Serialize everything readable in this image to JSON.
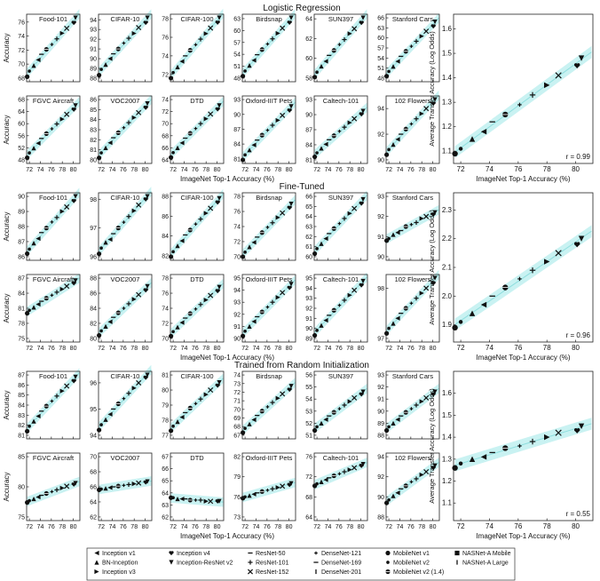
{
  "colors": {
    "band": "#bff0f0",
    "line": "#8fdede",
    "marker": "#111111"
  },
  "x_ticks": [
    "72",
    "74",
    "76",
    "78",
    "80"
  ],
  "sections": [
    {
      "title": "Logistic Regression",
      "small_ylabel": "Accuracy",
      "xlabel": "ImageNet Top-1 Accuracy (%)",
      "panels": [
        {
          "name": "Food-101",
          "yticks": [
            "68",
            "70",
            "72",
            "74",
            "76"
          ],
          "y": [
            68.2,
            69.0,
            69.8,
            70.6,
            71.4,
            72.1,
            72.8,
            73.6,
            74.4,
            75.1,
            75.9,
            76.6
          ]
        },
        {
          "name": "CIFAR-10",
          "yticks": [
            "88",
            "89",
            "90",
            "91",
            "92",
            "93",
            "94"
          ],
          "y": [
            88.3,
            88.9,
            89.4,
            90.0,
            90.5,
            91.0,
            91.6,
            92.1,
            92.6,
            93.2,
            93.7,
            94.2
          ]
        },
        {
          "name": "CIFAR-100",
          "yticks": [
            "72",
            "74",
            "76",
            "78"
          ],
          "y": [
            71.6,
            72.2,
            72.8,
            73.4,
            74.0,
            74.6,
            75.2,
            75.8,
            76.4,
            77.0,
            77.6,
            78.1
          ]
        },
        {
          "name": "Birdsnap",
          "yticks": [
            "48",
            "51",
            "54",
            "57",
            "60",
            "63"
          ],
          "y": [
            48.5,
            49.8,
            51.2,
            52.5,
            53.9,
            55.2,
            56.6,
            57.9,
            59.3,
            60.6,
            62.0,
            63.2
          ]
        },
        {
          "name": "SUN397",
          "yticks": [
            "58",
            "60",
            "62",
            "64"
          ],
          "y": [
            58.1,
            58.6,
            59.2,
            59.7,
            60.3,
            60.8,
            61.4,
            61.9,
            62.5,
            63.0,
            63.6,
            64.1
          ]
        },
        {
          "name": "Stanford Cars",
          "yticks": [
            "48",
            "51",
            "54",
            "57",
            "60",
            "63",
            "66"
          ],
          "y": [
            48.6,
            50.0,
            51.5,
            53.0,
            54.5,
            56.0,
            57.5,
            59.0,
            60.5,
            62.0,
            63.5,
            64.8
          ]
        },
        {
          "name": "FGVC Aircraft",
          "yticks": [
            "48",
            "52",
            "56",
            "60",
            "64",
            "68"
          ],
          "y": [
            48.7,
            50.3,
            51.9,
            53.5,
            55.1,
            56.7,
            58.3,
            59.9,
            61.5,
            63.1,
            64.7,
            66.0
          ]
        },
        {
          "name": "VOC2007",
          "yticks": [
            "80",
            "81",
            "82",
            "83",
            "84",
            "85",
            "86"
          ],
          "y": [
            80.2,
            80.7,
            81.2,
            81.7,
            82.2,
            82.7,
            83.2,
            83.7,
            84.2,
            84.7,
            85.2,
            85.6
          ]
        },
        {
          "name": "DTD",
          "yticks": [
            "64",
            "66",
            "68",
            "70",
            "72",
            "74"
          ],
          "y": [
            64.4,
            65.2,
            66.0,
            66.8,
            67.6,
            68.4,
            69.2,
            70.0,
            70.8,
            71.6,
            72.4,
            73.0
          ]
        },
        {
          "name": "Oxford-IIIT Pets",
          "yticks": [
            "81",
            "84",
            "87",
            "90",
            "93"
          ],
          "y": [
            80.8,
            81.8,
            82.8,
            83.8,
            84.8,
            85.8,
            86.8,
            87.8,
            88.8,
            89.8,
            90.8,
            91.6
          ]
        },
        {
          "name": "Caltech-101",
          "yticks": [
            "81",
            "84",
            "87",
            "90",
            "93"
          ],
          "y": [
            81.6,
            82.4,
            83.3,
            84.1,
            85.0,
            85.8,
            86.7,
            87.5,
            88.4,
            89.2,
            90.1,
            90.7
          ]
        },
        {
          "name": "102 Flowers",
          "yticks": [
            "90",
            "92",
            "94"
          ],
          "y": [
            90.4,
            90.8,
            91.2,
            91.6,
            92.0,
            92.4,
            92.8,
            93.2,
            93.6,
            94.0,
            94.4,
            94.7
          ]
        }
      ],
      "big": {
        "ylabel": "Average Transfer Accuracy (Log Odds)",
        "yticks": [
          "1.1",
          "1.2",
          "1.3",
          "1.4",
          "1.5",
          "1.6"
        ],
        "ymin": 1.05,
        "ymax": 1.66,
        "r_label": "r = 0.99",
        "y": [
          1.09,
          1.11,
          1.15,
          1.18,
          1.22,
          1.25,
          1.29,
          1.33,
          1.37,
          1.41,
          1.45,
          1.48
        ]
      }
    },
    {
      "title": "Fine-Tuned",
      "small_ylabel": "Accuracy",
      "xlabel": "ImageNet Top-1 Accuracy (%)",
      "panels": [
        {
          "name": "Food-101",
          "yticks": [
            "86",
            "87",
            "88",
            "89",
            "90"
          ],
          "y": [
            86.2,
            86.5,
            86.9,
            87.2,
            87.6,
            87.9,
            88.3,
            88.6,
            89.0,
            89.3,
            89.7,
            90.0
          ]
        },
        {
          "name": "CIFAR-10",
          "yticks": [
            "96",
            "97",
            "98"
          ],
          "y": [
            96.1,
            96.3,
            96.5,
            96.6,
            96.8,
            97.0,
            97.2,
            97.4,
            97.6,
            97.8,
            98.0,
            98.1
          ]
        },
        {
          "name": "CIFAR-100",
          "yticks": [
            "82",
            "84",
            "86",
            "88"
          ],
          "y": [
            81.9,
            82.4,
            83.0,
            83.5,
            84.1,
            84.6,
            85.2,
            85.7,
            86.3,
            86.8,
            87.4,
            87.8
          ]
        },
        {
          "name": "Birdsnap",
          "yticks": [
            "70",
            "72",
            "74",
            "76",
            "78"
          ],
          "y": [
            70.0,
            70.6,
            71.3,
            71.9,
            72.6,
            73.2,
            73.9,
            74.5,
            75.2,
            75.8,
            76.5,
            77.0
          ]
        },
        {
          "name": "SUN397",
          "yticks": [
            "60",
            "61",
            "62",
            "63",
            "64",
            "65",
            "66"
          ],
          "y": [
            60.3,
            60.8,
            61.3,
            61.8,
            62.3,
            62.8,
            63.3,
            63.8,
            64.3,
            64.8,
            65.3,
            65.7
          ]
        },
        {
          "name": "Stanford Cars",
          "yticks": [
            "90",
            "91",
            "92",
            "93"
          ],
          "y": [
            90.8,
            90.9,
            91.1,
            91.2,
            91.3,
            91.5,
            91.6,
            91.7,
            91.9,
            92.0,
            92.1,
            92.2
          ]
        },
        {
          "name": "FGVC Aircraft",
          "yticks": [
            "75",
            "78",
            "81",
            "84",
            "87"
          ],
          "y": [
            80.0,
            80.6,
            81.2,
            81.8,
            82.4,
            83.0,
            83.6,
            84.2,
            84.8,
            85.4,
            86.0,
            86.5
          ]
        },
        {
          "name": "VOC2007",
          "yticks": [
            "80",
            "82",
            "84",
            "86",
            "88"
          ],
          "y": [
            80.4,
            81.0,
            81.6,
            82.2,
            82.8,
            83.4,
            84.0,
            84.6,
            85.2,
            85.8,
            86.4,
            86.9
          ]
        },
        {
          "name": "DTD",
          "yticks": [
            "70",
            "72",
            "74",
            "76",
            "78"
          ],
          "y": [
            70.3,
            70.9,
            71.5,
            72.1,
            72.7,
            73.3,
            73.9,
            74.5,
            75.1,
            75.7,
            76.3,
            76.8
          ]
        },
        {
          "name": "Oxford-IIIT Pets",
          "yticks": [
            "90",
            "91",
            "92",
            "93",
            "94",
            "95"
          ],
          "y": [
            90.2,
            90.6,
            91.0,
            91.4,
            91.8,
            92.2,
            92.6,
            93.0,
            93.4,
            93.8,
            94.2,
            94.5
          ]
        },
        {
          "name": "Caltech-101",
          "yticks": [
            "89",
            "90",
            "91",
            "92",
            "93",
            "94",
            "95"
          ],
          "y": [
            89.3,
            89.8,
            90.3,
            90.8,
            91.3,
            91.8,
            92.3,
            92.8,
            93.3,
            93.8,
            94.3,
            94.7
          ]
        },
        {
          "name": "102 Flowers",
          "yticks": [
            "97",
            "98"
          ],
          "y": [
            97.1,
            97.2,
            97.3,
            97.4,
            97.5,
            97.6,
            97.7,
            97.8,
            97.9,
            98.0,
            98.1,
            98.2
          ]
        }
      ],
      "big": {
        "ylabel": "Average Transfer Accuracy (Log Odds)",
        "yticks": [
          "1.9",
          "2.0",
          "2.1",
          "2.2",
          "2.3"
        ],
        "ymin": 1.84,
        "ymax": 2.36,
        "r_label": "r = 0.96",
        "y": [
          1.89,
          1.91,
          1.94,
          1.97,
          2.0,
          2.03,
          2.06,
          2.09,
          2.12,
          2.15,
          2.18,
          2.2
        ]
      }
    },
    {
      "title": "Trained from Random Initialization",
      "small_ylabel": "Accuracy",
      "xlabel": "ImageNet Top-1 Accuracy (%)",
      "panels": [
        {
          "name": "Food-101",
          "yticks": [
            "81",
            "82",
            "83",
            "84",
            "85",
            "86",
            "87"
          ],
          "y": [
            81.4,
            81.9,
            82.4,
            82.9,
            83.4,
            83.9,
            84.4,
            84.9,
            85.4,
            85.9,
            86.4,
            86.8
          ]
        },
        {
          "name": "CIFAR-10",
          "yticks": [
            "94",
            "95",
            "96"
          ],
          "y": [
            94.2,
            94.4,
            94.6,
            94.8,
            95.0,
            95.2,
            95.4,
            95.6,
            95.8,
            96.0,
            96.2,
            96.3
          ]
        },
        {
          "name": "CIFAR-100",
          "yticks": [
            "77",
            "78",
            "79",
            "80",
            "81"
          ],
          "y": [
            77.3,
            77.6,
            77.9,
            78.2,
            78.5,
            78.8,
            79.1,
            79.4,
            79.7,
            80.0,
            80.3,
            80.5
          ]
        },
        {
          "name": "Birdsnap",
          "yticks": [
            "67",
            "68",
            "69",
            "70",
            "71",
            "72",
            "73",
            "74"
          ],
          "y": [
            67.3,
            67.8,
            68.3,
            68.8,
            69.3,
            69.8,
            70.3,
            70.8,
            71.3,
            71.8,
            72.3,
            72.7
          ]
        },
        {
          "name": "SUN397",
          "yticks": [
            "51",
            "52",
            "53",
            "54",
            "55",
            "56"
          ],
          "y": [
            51.4,
            51.7,
            52.0,
            52.3,
            52.6,
            52.9,
            53.2,
            53.5,
            53.8,
            54.1,
            54.4,
            54.6
          ]
        },
        {
          "name": "Stanford Cars",
          "yticks": [
            "88",
            "89",
            "90",
            "91",
            "92",
            "93"
          ],
          "y": [
            88.4,
            88.7,
            89.0,
            89.3,
            89.6,
            89.9,
            90.2,
            90.5,
            90.8,
            91.1,
            91.4,
            91.6
          ]
        },
        {
          "name": "FGVC Aircraft",
          "yticks": [
            "75",
            "80",
            "85"
          ],
          "y": [
            77.4,
            77.7,
            78.0,
            78.3,
            78.6,
            78.9,
            79.2,
            79.5,
            79.8,
            80.1,
            80.4,
            80.6
          ]
        },
        {
          "name": "VOC2007",
          "yticks": [
            "62",
            "64",
            "66",
            "68",
            "70"
          ],
          "y": [
            65.6,
            65.7,
            65.8,
            65.9,
            66.0,
            66.1,
            66.2,
            66.3,
            66.4,
            66.5,
            66.6,
            66.7
          ]
        },
        {
          "name": "DTD",
          "yticks": [
            "62",
            "63",
            "64",
            "65",
            "66",
            "67"
          ],
          "y": [
            63.6,
            63.6,
            63.5,
            63.5,
            63.5,
            63.4,
            63.4,
            63.4,
            63.3,
            63.3,
            63.3,
            63.3
          ]
        },
        {
          "name": "Oxford-IIIT Pets",
          "yticks": [
            "73",
            "76",
            "79",
            "82"
          ],
          "y": [
            75.8,
            76.0,
            76.2,
            76.4,
            76.6,
            76.8,
            77.0,
            77.2,
            77.4,
            77.6,
            77.8,
            78.0
          ]
        },
        {
          "name": "Caltech-101",
          "yticks": [
            "64",
            "68",
            "72",
            "76"
          ],
          "y": [
            70.2,
            70.6,
            71.0,
            71.4,
            71.8,
            72.2,
            72.6,
            73.0,
            73.4,
            73.8,
            74.2,
            74.5
          ]
        },
        {
          "name": "102 Flowers",
          "yticks": [
            "88",
            "90",
            "92",
            "94"
          ],
          "y": [
            89.4,
            89.7,
            90.1,
            90.4,
            90.8,
            91.1,
            91.5,
            91.8,
            92.2,
            92.5,
            92.9,
            93.1
          ]
        }
      ],
      "big": {
        "ylabel": "Average Transfer Accuracy (Log Odds)",
        "yticks": [
          "1.1",
          "1.2",
          "1.3",
          "1.4",
          "1.5",
          "1.6"
        ],
        "ymin": 1.02,
        "ymax": 1.7,
        "r_label": "r = 0.55",
        "y": [
          1.26,
          1.28,
          1.3,
          1.31,
          1.33,
          1.35,
          1.36,
          1.38,
          1.4,
          1.42,
          1.43,
          1.45
        ]
      }
    }
  ],
  "models": [
    {
      "name": "Inception v1",
      "marker": "tri-left"
    },
    {
      "name": "BN-Inception",
      "marker": "tri-up"
    },
    {
      "name": "Inception v3",
      "marker": "tri-right"
    },
    {
      "name": "Inception v4",
      "marker": "heart"
    },
    {
      "name": "Inception-ResNet v2",
      "marker": "tri-down"
    },
    {
      "name": "ResNet-50",
      "marker": "dash"
    },
    {
      "name": "ResNet-101",
      "marker": "plus"
    },
    {
      "name": "ResNet-152",
      "marker": "x"
    },
    {
      "name": "DenseNet-121",
      "marker": "plus-small"
    },
    {
      "name": "DenseNet-169",
      "marker": "dash"
    },
    {
      "name": "DenseNet-201",
      "marker": "vline"
    },
    {
      "name": "MobileNet v1",
      "marker": "circle"
    },
    {
      "name": "MobileNet v2",
      "marker": "circle-small"
    },
    {
      "name": "MobileNet v2 (1.4)",
      "marker": "circle-cross"
    },
    {
      "name": "NASNet-A Mobile",
      "marker": "square"
    },
    {
      "name": "NASNet-A Large",
      "marker": "vline"
    }
  ],
  "chart_data": {
    "type": "scatter",
    "title": "",
    "description_axes": "Each panel: transfer accuracy vs ImageNet top-1 accuracy; best-fit line with shaded band",
    "x": [
      71.6,
      72.0,
      72.8,
      73.6,
      74.2,
      75.1,
      76.1,
      77.0,
      78.0,
      78.8,
      80.1,
      80.4
    ],
    "x_model_order": [
      "MobileNet v1",
      "MobileNet v2",
      "BN-Inception",
      "Inception v1",
      "ResNet-50",
      "MobileNet v2 (1.4)",
      "DenseNet-121",
      "ResNet-101",
      "Inception v3",
      "ResNet-152",
      "Inception v4",
      "Inception-ResNet v2"
    ],
    "xlim": [
      71.5,
      81.2
    ],
    "note": "Per-panel y values are stored under sections[].panels[].y and sections[].big.y, aligned with x."
  }
}
